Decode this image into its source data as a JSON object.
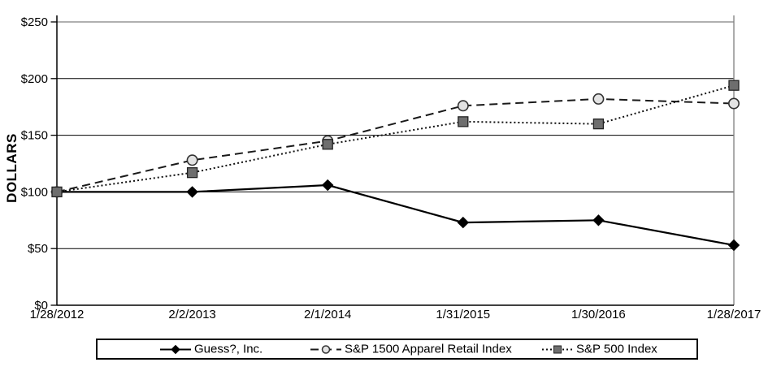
{
  "chart_data": {
    "type": "line",
    "title": "",
    "xlabel": "",
    "ylabel": "DOLLARS",
    "x": [
      "1/28/2012",
      "2/2/2013",
      "2/1/2014",
      "1/31/2015",
      "1/30/2016",
      "1/28/2017"
    ],
    "ylim": [
      0,
      250
    ],
    "ytick_step": 50,
    "y_tick_labels": [
      "$0",
      "$50",
      "$100",
      "$150",
      "$200",
      "$250"
    ],
    "grid": true,
    "legend_position": "bottom",
    "series": [
      {
        "name": "Guess?, Inc.",
        "values": [
          100,
          100,
          106,
          73,
          75,
          53
        ],
        "line_style": "solid",
        "marker": "diamond",
        "line_color": "#000000",
        "marker_fill": "#000000",
        "marker_stroke": "#000000"
      },
      {
        "name": "S&P 1500 Apparel Retail Index",
        "values": [
          100,
          128,
          145,
          176,
          182,
          178
        ],
        "line_style": "dashed",
        "marker": "circle",
        "line_color": "#1a1a1a",
        "marker_fill": "#e3e3e3",
        "marker_stroke": "#333333"
      },
      {
        "name": "S&P 500 Index",
        "values": [
          100,
          117,
          142,
          162,
          160,
          194
        ],
        "line_style": "dotted",
        "marker": "square",
        "line_color": "#111111",
        "marker_fill": "#6e6e6e",
        "marker_stroke": "#222222"
      }
    ]
  },
  "colors": {
    "background": "#ffffff",
    "gridline": "#000000",
    "axis": "#000000",
    "plot_border_gray": "#808080",
    "text": "#000000"
  }
}
